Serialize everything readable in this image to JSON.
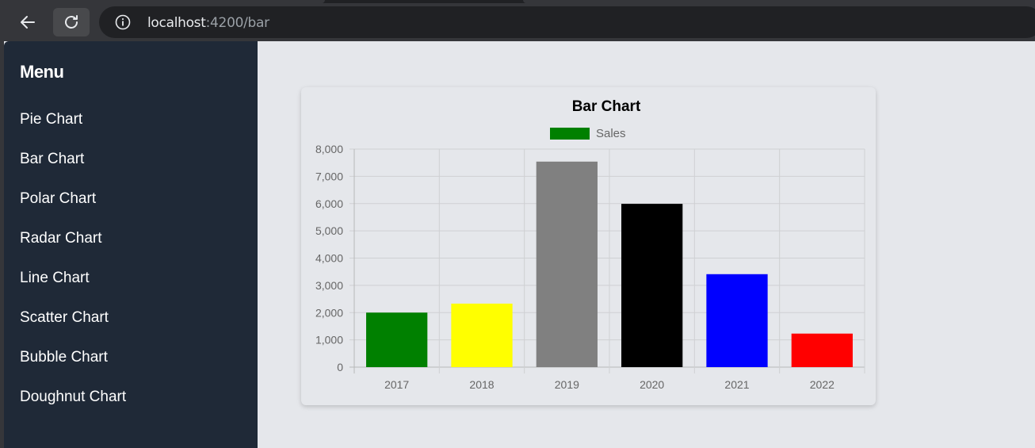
{
  "browser": {
    "url_host": "localhost",
    "url_path": ":4200/bar"
  },
  "sidebar": {
    "title": "Menu",
    "items": [
      {
        "label": "Pie Chart"
      },
      {
        "label": "Bar Chart"
      },
      {
        "label": "Polar Chart"
      },
      {
        "label": "Radar Chart"
      },
      {
        "label": "Line Chart"
      },
      {
        "label": "Scatter Chart"
      },
      {
        "label": "Bubble Chart"
      },
      {
        "label": "Doughnut Chart"
      }
    ]
  },
  "colors": {
    "sidebar_bg": "#1f2937",
    "page_bg": "#e5e7eb"
  },
  "chart_data": {
    "type": "bar",
    "title": "Bar Chart",
    "legend": "top",
    "grid": true,
    "categories": [
      "2017",
      "2018",
      "2019",
      "2020",
      "2021",
      "2022"
    ],
    "series": [
      {
        "name": "Sales",
        "color": "#008000",
        "values": [
          2000,
          2330,
          7540,
          5990,
          3410,
          1230
        ],
        "bar_colors": [
          "#008000",
          "#ffff00",
          "#808080",
          "#000000",
          "#0000ff",
          "#ff0000"
        ]
      }
    ],
    "ylim": [
      0,
      8000
    ],
    "yticks": [
      "0",
      "1,000",
      "2,000",
      "3,000",
      "4,000",
      "5,000",
      "6,000",
      "7,000",
      "8,000"
    ],
    "xlabel": "",
    "ylabel": ""
  }
}
